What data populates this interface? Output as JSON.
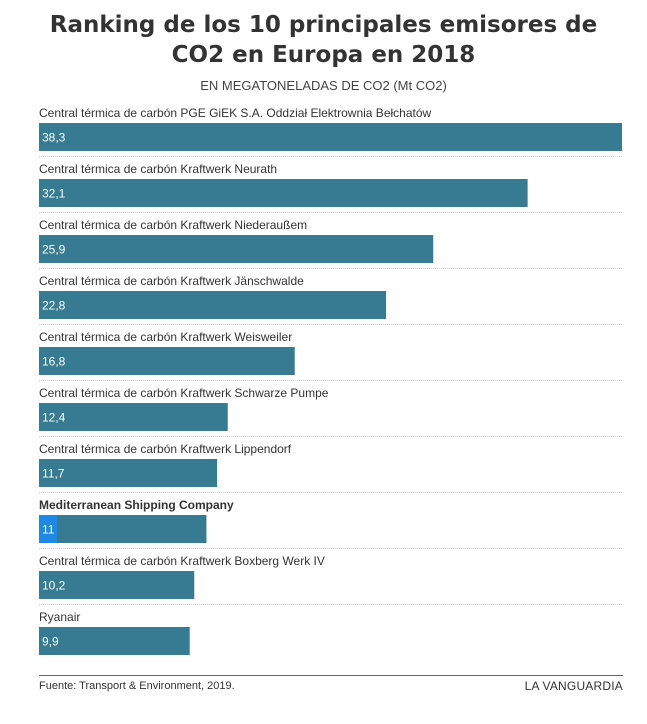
{
  "title": "Ranking de los 10 principales emisores de CO2 en Europa en 2018",
  "subtitle": "EN MEGATONELADAS DE CO2 (Mt CO2)",
  "footer": {
    "source": "Fuente: Transport & Environment, 2019.",
    "brand": "LA VANGUARDIA"
  },
  "chart_data": {
    "type": "bar",
    "orientation": "horizontal",
    "categories": [
      "Central térmica de carbón PGE GiEK S.A. Oddział Elektrownia Bełchatów",
      "Central térmica de carbón Kraftwerk Neurath",
      "Central térmica de carbón Kraftwerk Niederaußem",
      "Central térmica de carbón Kraftwerk Jänschwalde",
      "Central térmica de carbón Kraftwerk Weisweiler",
      "Central térmica de carbón Kraftwerk Schwarze Pumpe",
      "Central térmica de carbón Kraftwerk Lippendorf",
      "Mediterranean Shipping Company",
      "Central térmica de carbón Kraftwerk Boxberg Werk IV",
      "Ryanair"
    ],
    "values": [
      38.3,
      32.1,
      25.9,
      22.8,
      16.8,
      12.4,
      11.7,
      11,
      10.2,
      9.9
    ],
    "value_labels": [
      "38,3",
      "32,1",
      "25,9",
      "22,8",
      "16,8",
      "12,4",
      "11,7",
      "11",
      "10,2",
      "9,9"
    ],
    "highlight_index": 7,
    "xlim": [
      0,
      38.3
    ],
    "grid": false,
    "colors": {
      "bar": "#367b91",
      "highlight_accent": "#1e88e5",
      "separator": "#cccccc"
    }
  }
}
